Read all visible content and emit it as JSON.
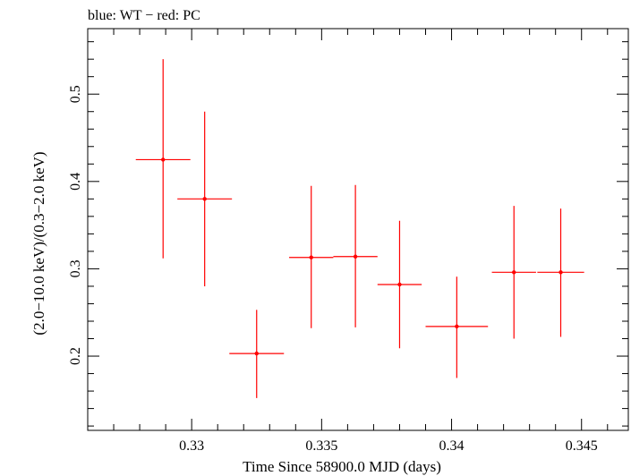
{
  "chart_data": {
    "type": "scatter",
    "title": "blue: WT − red: PC",
    "xlabel": "Time Since 58900.0 MJD (days)",
    "ylabel": "(2.0−10.0 keV)/(0.3−2.0 keV)",
    "xlim": [
      0.326,
      0.3468
    ],
    "ylim": [
      0.115,
      0.575
    ],
    "x_ticks": [
      0.33,
      0.335,
      0.34,
      0.345
    ],
    "x_tick_labels": [
      "0.33",
      "0.335",
      "0.34",
      "0.345"
    ],
    "y_ticks": [
      0.2,
      0.3,
      0.4,
      0.5
    ],
    "y_tick_labels": [
      "0.2",
      "0.3",
      "0.4",
      "0.5"
    ],
    "grid": false,
    "series": [
      {
        "color": "#ff0000",
        "points": [
          {
            "x": 0.3289,
            "xerr": 0.00105,
            "y": 0.425,
            "yerr_low": 0.113,
            "yerr_high": 0.115
          },
          {
            "x": 0.3305,
            "xerr": 0.00105,
            "y": 0.38,
            "yerr_low": 0.1,
            "yerr_high": 0.1
          },
          {
            "x": 0.3325,
            "xerr": 0.00105,
            "y": 0.203,
            "yerr_low": 0.051,
            "yerr_high": 0.05
          },
          {
            "x": 0.3346,
            "xerr": 0.00085,
            "y": 0.313,
            "yerr_low": 0.081,
            "yerr_high": 0.082
          },
          {
            "x": 0.3363,
            "xerr": 0.00085,
            "y": 0.314,
            "yerr_low": 0.081,
            "yerr_high": 0.082
          },
          {
            "x": 0.338,
            "xerr": 0.00085,
            "y": 0.282,
            "yerr_low": 0.073,
            "yerr_high": 0.073
          },
          {
            "x": 0.3402,
            "xerr": 0.0012,
            "y": 0.234,
            "yerr_low": 0.059,
            "yerr_high": 0.057
          },
          {
            "x": 0.3424,
            "xerr": 0.00085,
            "y": 0.296,
            "yerr_low": 0.076,
            "yerr_high": 0.076
          },
          {
            "x": 0.3442,
            "xerr": 0.0009,
            "y": 0.296,
            "yerr_low": 0.074,
            "yerr_high": 0.073
          }
        ]
      }
    ]
  }
}
